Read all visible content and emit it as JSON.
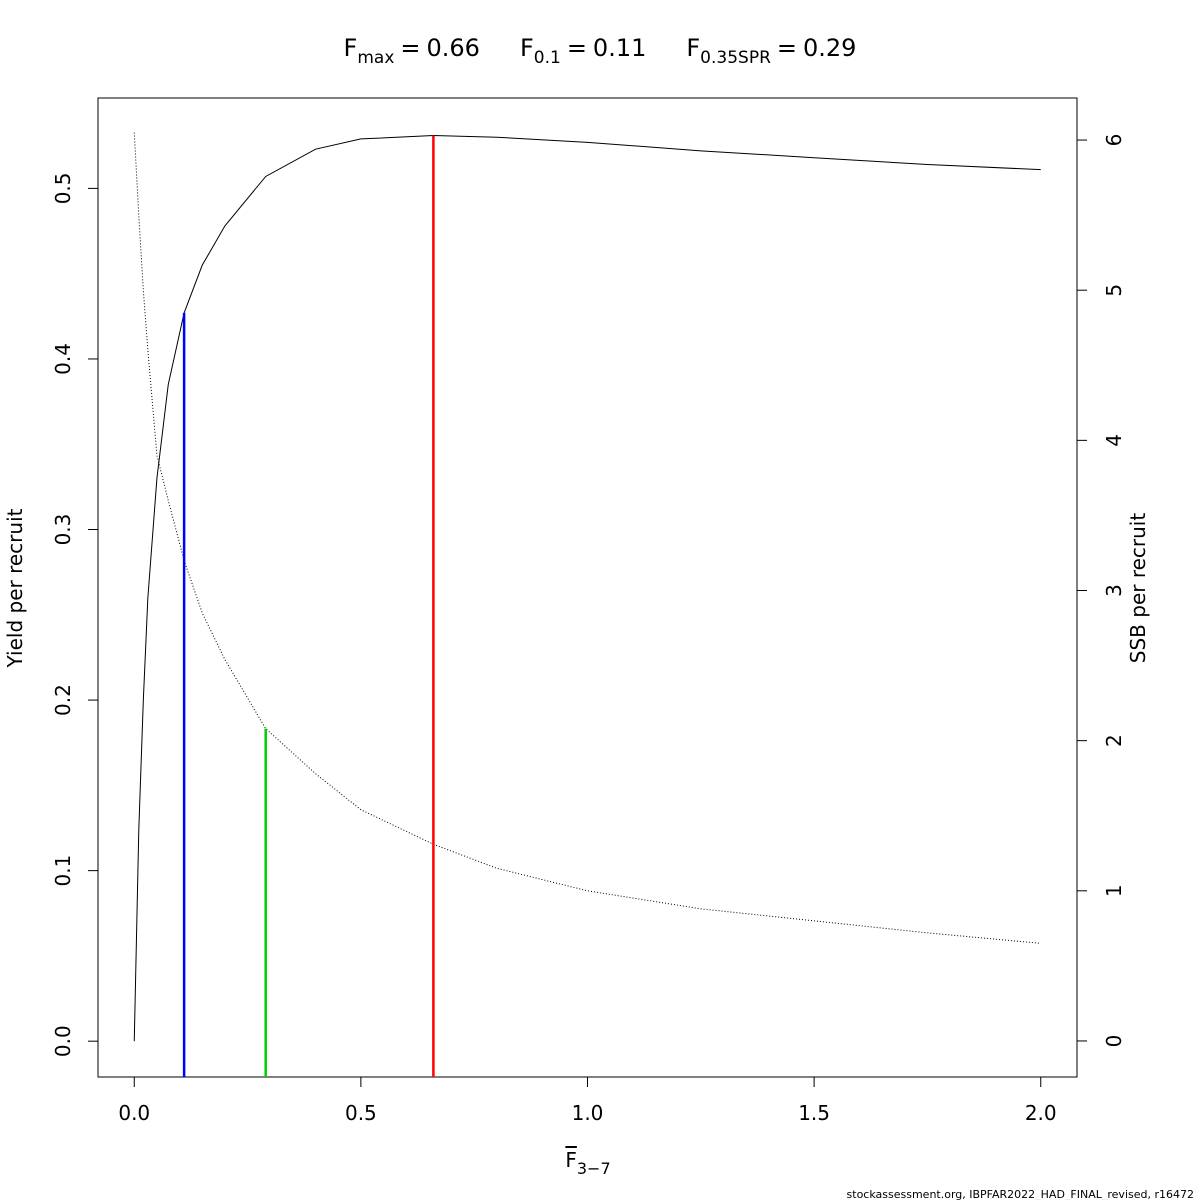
{
  "chart_data": {
    "type": "line",
    "reference_points": [
      {
        "symbol": "F",
        "subscript": "max",
        "relation": "=",
        "value": 0.66,
        "color": "#ff0000",
        "top": 0.531,
        "top_axis": "y"
      },
      {
        "symbol": "F",
        "subscript": "0.1",
        "relation": "=",
        "value": 0.11,
        "color": "#0000ff",
        "top": 0.427,
        "top_axis": "y"
      },
      {
        "symbol": "F",
        "subscript": "0.35SPR",
        "relation": "=",
        "value": 0.29,
        "color": "#00cd00",
        "top": 2.08,
        "top_axis": "y2"
      }
    ],
    "x_label": {
      "symbol": "F",
      "subscript": "3−7"
    },
    "y_label": "Yield per recruit",
    "y2_label": "SSB per recruit",
    "x": [
      0,
      0.01,
      0.02,
      0.03,
      0.05,
      0.075,
      0.11,
      0.15,
      0.2,
      0.29,
      0.4,
      0.5,
      0.66,
      0.8,
      1.0,
      1.25,
      1.5,
      1.75,
      2.0
    ],
    "series": [
      {
        "name": "Yield per recruit",
        "color": "#000000",
        "dash": "solid",
        "axis": "y",
        "values": [
          0,
          0.124,
          0.2,
          0.26,
          0.33,
          0.385,
          0.427,
          0.455,
          0.478,
          0.507,
          0.523,
          0.529,
          0.531,
          0.53,
          0.527,
          0.522,
          0.518,
          0.514,
          0.511
        ]
      },
      {
        "name": "SSB per recruit",
        "color": "#000000",
        "dash": "dotted",
        "axis": "y2",
        "values": [
          6.05,
          5.5,
          5.0,
          4.6,
          3.9,
          3.6,
          3.2,
          2.85,
          2.54,
          2.08,
          1.78,
          1.54,
          1.31,
          1.15,
          1.0,
          0.88,
          0.8,
          0.72,
          0.65
        ]
      }
    ],
    "xlim": [
      -0.08,
      2.08
    ],
    "ylim": [
      -0.021,
      0.553
    ],
    "y2lim": [
      -0.24,
      6.28
    ],
    "xticks": [
      {
        "value": 0,
        "label": "0.0"
      },
      0.5,
      {
        "value": 1,
        "label": "1.0"
      },
      1.5,
      {
        "value": 2,
        "label": "2.0"
      }
    ],
    "yticks": [
      {
        "value": 0,
        "label": "0.0"
      },
      0.1,
      0.2,
      0.3,
      0.4,
      0.5
    ],
    "y2ticks": [
      0,
      1,
      2,
      3,
      4,
      5,
      6
    ],
    "footer": "stockassessment.org, IBPFAR2022_HAD_FINAL_revised, r16472"
  }
}
